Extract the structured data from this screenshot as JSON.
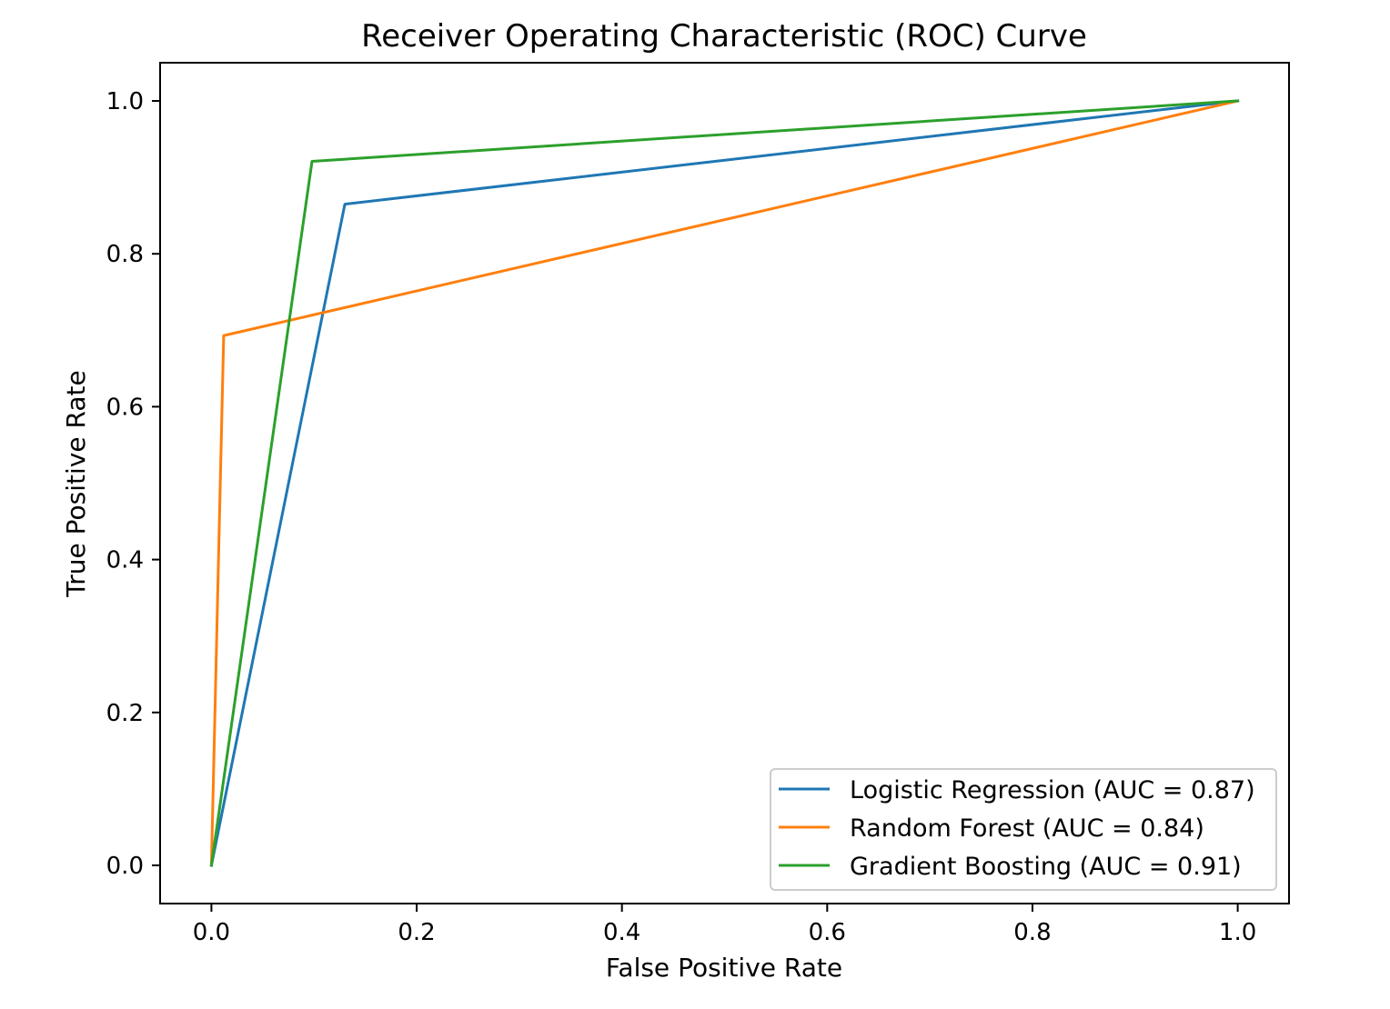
{
  "chart_data": {
    "type": "line",
    "title": "Receiver Operating Characteristic (ROC) Curve",
    "xlabel": "False Positive Rate",
    "ylabel": "True Positive Rate",
    "xlim": [
      -0.05,
      1.05
    ],
    "ylim": [
      -0.05,
      1.05
    ],
    "xticks": [
      0.0,
      0.2,
      0.4,
      0.6,
      0.8,
      1.0
    ],
    "xtick_labels": [
      "0.0",
      "0.2",
      "0.4",
      "0.6",
      "0.8",
      "1.0"
    ],
    "yticks": [
      0.0,
      0.2,
      0.4,
      0.6,
      0.8,
      1.0
    ],
    "ytick_labels": [
      "0.0",
      "0.2",
      "0.4",
      "0.6",
      "0.8",
      "1.0"
    ],
    "grid": false,
    "legend_position": "lower-right",
    "series": [
      {
        "name": "Logistic Regression (AUC = 0.87)",
        "color": "#1f77b4",
        "x": [
          0.0,
          0.13,
          1.0
        ],
        "y": [
          0.0,
          0.865,
          1.0
        ]
      },
      {
        "name": "Random Forest (AUC = 0.84)",
        "color": "#ff7f0e",
        "x": [
          0.0,
          0.012,
          1.0
        ],
        "y": [
          0.0,
          0.693,
          1.0
        ]
      },
      {
        "name": "Gradient Boosting (AUC = 0.91)",
        "color": "#2ca02c",
        "x": [
          0.0,
          0.098,
          1.0
        ],
        "y": [
          0.0,
          0.921,
          1.0
        ]
      }
    ]
  }
}
